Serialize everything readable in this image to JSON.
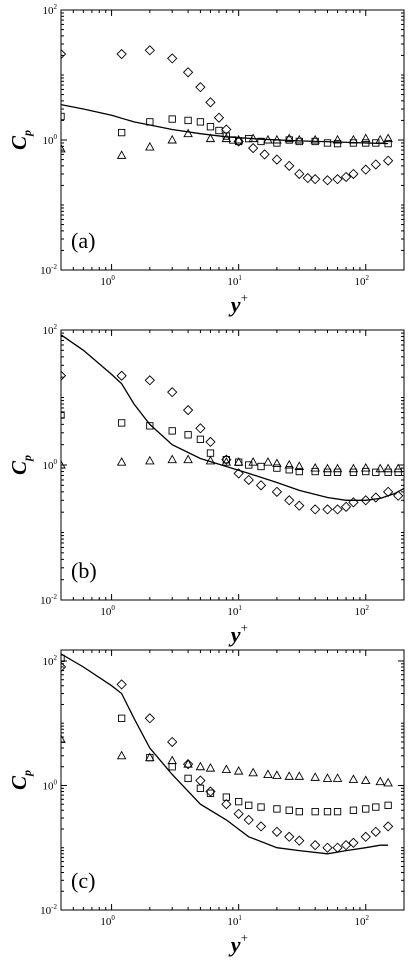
{
  "chart_data": [
    {
      "type": "scatter",
      "panel_label": "(a)",
      "xlabel": "y",
      "xlabel_sup": "+",
      "ylabel": "C",
      "ylabel_sub": "p",
      "xscale": "log",
      "yscale": "log",
      "xlim": [
        0.4,
        200
      ],
      "ylim": [
        0.01,
        100
      ],
      "xticks": [
        {
          "base": "10",
          "exp": "0",
          "value": 1
        },
        {
          "base": "10",
          "exp": "1",
          "value": 10
        },
        {
          "base": "10",
          "exp": "2",
          "value": 100
        }
      ],
      "yticks": [
        {
          "base": "10",
          "exp": "-2",
          "value": 0.01
        },
        {
          "base": "10",
          "exp": "0",
          "value": 1
        },
        {
          "base": "10",
          "exp": "2",
          "value": 100
        }
      ],
      "series": [
        {
          "marker": "line",
          "x": [
            0.4,
            0.6,
            1,
            1.5,
            2,
            3,
            5,
            8,
            15,
            30,
            60,
            100,
            150
          ],
          "y": [
            3.5,
            3.0,
            2.4,
            1.9,
            1.7,
            1.45,
            1.25,
            1.12,
            1.03,
            0.97,
            0.93,
            0.9,
            0.88
          ]
        },
        {
          "marker": "diamond",
          "x": [
            0.4,
            1.2,
            2,
            3,
            4,
            5,
            6,
            7,
            8,
            10,
            13,
            16,
            20,
            25,
            30,
            35,
            40,
            50,
            60,
            70,
            80,
            100,
            120,
            150
          ],
          "y": [
            21,
            21,
            24,
            18,
            11,
            6.5,
            3.8,
            2.2,
            1.45,
            0.95,
            0.75,
            0.6,
            0.5,
            0.4,
            0.3,
            0.26,
            0.25,
            0.24,
            0.25,
            0.27,
            0.3,
            0.35,
            0.42,
            0.48
          ]
        },
        {
          "marker": "square",
          "x": [
            0.4,
            1.2,
            2,
            3,
            4,
            5,
            6,
            7,
            8,
            9,
            10,
            12,
            15,
            20,
            25,
            30,
            40,
            50,
            60,
            80,
            100,
            120,
            150
          ],
          "y": [
            2.3,
            1.3,
            1.9,
            2.1,
            2.0,
            1.9,
            1.6,
            1.4,
            1.15,
            1.0,
            0.95,
            1.05,
            0.95,
            0.9,
            1.0,
            0.95,
            0.95,
            0.9,
            0.88,
            0.9,
            0.9,
            0.9,
            0.88
          ]
        },
        {
          "marker": "triangle",
          "x": [
            0.4,
            1.2,
            2,
            3,
            4,
            6,
            8,
            10,
            13,
            17,
            20,
            25,
            30,
            40,
            60,
            80,
            100,
            130,
            150
          ],
          "y": [
            0.73,
            0.58,
            0.78,
            1.0,
            1.25,
            1.05,
            1.05,
            1.0,
            1.05,
            1.0,
            1.0,
            1.05,
            1.0,
            1.0,
            1.0,
            1.0,
            1.05,
            1.0,
            1.05
          ]
        }
      ]
    },
    {
      "type": "scatter",
      "panel_label": "(b)",
      "xlabel": "y",
      "xlabel_sup": "+",
      "ylabel": "C",
      "ylabel_sub": "p",
      "xscale": "log",
      "yscale": "log",
      "xlim": [
        0.4,
        200
      ],
      "ylim": [
        0.01,
        100
      ],
      "xticks": [
        {
          "base": "10",
          "exp": "0",
          "value": 1
        },
        {
          "base": "10",
          "exp": "1",
          "value": 10
        },
        {
          "base": "10",
          "exp": "2",
          "value": 100
        }
      ],
      "yticks": [
        {
          "base": "10",
          "exp": "-2",
          "value": 0.01
        },
        {
          "base": "10",
          "exp": "0",
          "value": 1
        },
        {
          "base": "10",
          "exp": "2",
          "value": 100
        }
      ],
      "series": [
        {
          "marker": "line",
          "x": [
            0.4,
            0.6,
            1,
            1.2,
            1.5,
            2,
            3,
            5,
            8,
            12,
            20,
            30,
            50,
            70,
            100,
            130,
            170,
            200
          ],
          "y": [
            85,
            50,
            22,
            16,
            8,
            4,
            2.0,
            1.25,
            0.95,
            0.75,
            0.55,
            0.42,
            0.33,
            0.3,
            0.3,
            0.32,
            0.38,
            0.45
          ]
        },
        {
          "marker": "diamond",
          "x": [
            0.4,
            1.2,
            2,
            3,
            4,
            5,
            6,
            8,
            10,
            12,
            15,
            20,
            25,
            30,
            40,
            50,
            60,
            70,
            80,
            100,
            120,
            150,
            180
          ],
          "y": [
            21,
            21,
            18,
            12,
            6.5,
            3.5,
            2.2,
            1.2,
            0.75,
            0.6,
            0.5,
            0.4,
            0.3,
            0.25,
            0.22,
            0.22,
            0.22,
            0.24,
            0.28,
            0.3,
            0.33,
            0.4,
            0.35
          ]
        },
        {
          "marker": "square",
          "x": [
            0.4,
            1.2,
            2,
            3,
            4,
            5,
            6,
            8,
            10,
            12,
            15,
            20,
            25,
            30,
            40,
            50,
            60,
            80,
            100,
            120,
            150,
            180
          ],
          "y": [
            5.5,
            4.2,
            3.8,
            3.2,
            2.8,
            2.4,
            1.5,
            1.2,
            1.1,
            1.0,
            0.95,
            0.9,
            0.85,
            0.8,
            0.8,
            0.78,
            0.78,
            0.78,
            0.8,
            0.78,
            0.78,
            0.78
          ]
        },
        {
          "marker": "triangle",
          "x": [
            0.4,
            1.2,
            2,
            3,
            4,
            6,
            8,
            10,
            13,
            17,
            20,
            25,
            30,
            40,
            50,
            60,
            80,
            100,
            130,
            150,
            180
          ],
          "y": [
            1.0,
            1.1,
            1.15,
            1.2,
            1.2,
            1.15,
            1.1,
            1.1,
            1.1,
            1.1,
            1.05,
            1.0,
            0.95,
            0.9,
            0.88,
            0.88,
            0.88,
            0.9,
            0.88,
            0.88,
            0.88
          ]
        }
      ]
    },
    {
      "type": "scatter",
      "panel_label": "(c)",
      "xlabel": "y",
      "xlabel_sup": "+",
      "ylabel": "C",
      "ylabel_sub": "p",
      "xscale": "log",
      "yscale": "log",
      "xlim": [
        0.4,
        200
      ],
      "ylim": [
        0.01,
        150
      ],
      "xticks": [
        {
          "base": "10",
          "exp": "0",
          "value": 1
        },
        {
          "base": "10",
          "exp": "1",
          "value": 10
        },
        {
          "base": "10",
          "exp": "2",
          "value": 100
        }
      ],
      "yticks": [
        {
          "base": "10",
          "exp": "-2",
          "value": 0.01
        },
        {
          "base": "10",
          "exp": "0",
          "value": 1
        },
        {
          "base": "10",
          "exp": "2",
          "value": 100
        }
      ],
      "series": [
        {
          "marker": "line",
          "x": [
            0.4,
            0.6,
            1,
            1.2,
            1.5,
            2,
            3,
            5,
            8,
            12,
            20,
            30,
            50,
            70,
            100,
            130,
            150
          ],
          "y": [
            130,
            80,
            40,
            30,
            12,
            4,
            1.5,
            0.5,
            0.28,
            0.15,
            0.1,
            0.09,
            0.08,
            0.09,
            0.1,
            0.11,
            0.11
          ]
        },
        {
          "marker": "diamond",
          "x": [
            0.4,
            1.2,
            2,
            3,
            4,
            5,
            6,
            8,
            10,
            12,
            15,
            20,
            25,
            30,
            40,
            50,
            60,
            70,
            80,
            100,
            120,
            150
          ],
          "y": [
            80,
            42,
            12,
            5,
            2.2,
            1.2,
            0.8,
            0.5,
            0.35,
            0.28,
            0.22,
            0.18,
            0.15,
            0.13,
            0.11,
            0.1,
            0.1,
            0.11,
            0.12,
            0.15,
            0.18,
            0.22
          ]
        },
        {
          "marker": "square",
          "x": [
            0.4,
            1.2,
            2,
            3,
            4,
            5,
            6,
            8,
            10,
            12,
            15,
            20,
            25,
            30,
            40,
            50,
            60,
            80,
            100,
            120,
            150
          ],
          "y": [
            110,
            12,
            2.8,
            2.0,
            1.3,
            0.9,
            0.75,
            0.65,
            0.55,
            0.48,
            0.45,
            0.42,
            0.4,
            0.38,
            0.38,
            0.38,
            0.38,
            0.4,
            0.42,
            0.45,
            0.48
          ]
        },
        {
          "marker": "triangle",
          "x": [
            0.4,
            1.2,
            2,
            3,
            4,
            5,
            6,
            8,
            10,
            13,
            17,
            20,
            25,
            30,
            40,
            50,
            60,
            80,
            100,
            130,
            150
          ],
          "y": [
            5.5,
            3.0,
            2.8,
            2.5,
            2.2,
            2.0,
            1.9,
            1.8,
            1.7,
            1.6,
            1.5,
            1.45,
            1.4,
            1.4,
            1.35,
            1.3,
            1.3,
            1.25,
            1.2,
            1.15,
            1.1
          ]
        }
      ]
    }
  ]
}
